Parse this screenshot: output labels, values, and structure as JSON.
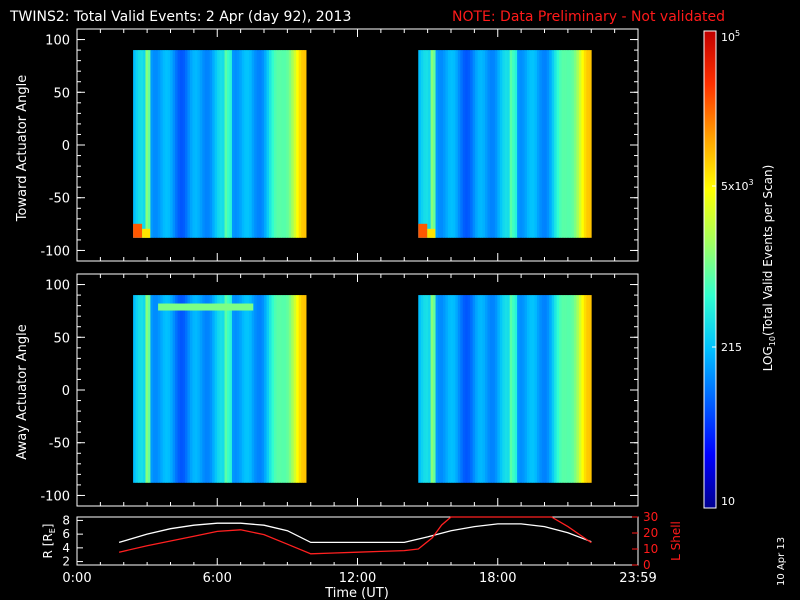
{
  "header": {
    "title": "TWINS2: Total Valid Events:  2 Apr (day  92), 2013",
    "note": "NOTE: Data Preliminary - Not validated"
  },
  "stamp": "10 Apr 13",
  "colors": {
    "background": "#000000",
    "note": "#ff1a1a",
    "r_curve": "#ffffff",
    "lshell_curve": "#ff2020"
  },
  "chart_data": [
    {
      "type": "heatmap",
      "panel": "toward",
      "ylabel": "Toward Actuator Angle",
      "ylim": [
        -110,
        110
      ],
      "yticks": [
        "100",
        "50",
        "0",
        "-50",
        "-100"
      ],
      "xlim_hours": [
        0,
        24
      ],
      "data_intervals_hours": [
        [
          2.4,
          9.8
        ],
        [
          14.6,
          22.0
        ]
      ],
      "angle_range": [
        -88,
        90
      ],
      "colorscale": "log10 events per scan, blue (low) to red (high)"
    },
    {
      "type": "heatmap",
      "panel": "away",
      "ylabel": "Away Actuator Angle",
      "ylim": [
        -110,
        110
      ],
      "yticks": [
        "100",
        "50",
        "0",
        "-50",
        "-100"
      ],
      "xlim_hours": [
        0,
        24
      ],
      "data_intervals_hours": [
        [
          2.4,
          9.8
        ],
        [
          14.6,
          22.0
        ]
      ],
      "angle_range": [
        -88,
        90
      ],
      "colorscale": "log10 events per scan, blue (low) to red (high)"
    },
    {
      "type": "line",
      "panel": "orbit",
      "xlabel": "Time (UT)",
      "xticks": [
        "0:00",
        "6:00",
        "12:00",
        "18:00",
        "23:59"
      ],
      "left_axis": {
        "label": "R [R",
        "label_sub": "E",
        "label_end": "]",
        "ylim": [
          1.5,
          8.5
        ],
        "yticks": [
          "8",
          "6",
          "4",
          "2"
        ]
      },
      "right_axis": {
        "label": "L Shell",
        "ylim": [
          0,
          30
        ],
        "yticks": [
          "30",
          "20",
          "10",
          "0"
        ]
      },
      "series": [
        {
          "axis": "left",
          "x": [
            1.8,
            3,
            4,
            5,
            6,
            7,
            8,
            9,
            10,
            11,
            12,
            13,
            14,
            15,
            16,
            17,
            18,
            19,
            20,
            21,
            22
          ],
          "y": [
            4.8,
            6.0,
            6.8,
            7.3,
            7.6,
            7.6,
            7.3,
            6.5,
            4.8,
            4.8,
            4.8,
            4.8,
            4.8,
            5.6,
            6.5,
            7.1,
            7.5,
            7.5,
            7.1,
            6.2,
            4.9
          ]
        },
        {
          "axis": "right",
          "x": [
            1.8,
            3,
            4,
            5,
            6,
            7,
            8,
            9,
            10,
            11,
            12,
            13,
            14,
            14.6,
            15.2,
            15.6,
            16.0,
            20.3,
            21.0,
            21.5,
            22.0
          ],
          "y": [
            8,
            12,
            15,
            18,
            21,
            22,
            19,
            13,
            7,
            7.5,
            8,
            8.5,
            9,
            10,
            17,
            25,
            31,
            31,
            24,
            19,
            14
          ]
        }
      ]
    }
  ],
  "colorbar": {
    "label_prefix": "LOG",
    "label_sub": "10",
    "label_suffix": "(Total Valid  Events per Scan)",
    "top": {
      "base": "10",
      "exp": "5"
    },
    "mid": {
      "base": "5x10",
      "exp": "3"
    },
    "low": "215",
    "bottom": "10",
    "colors": [
      "#00008f",
      "#0000ff",
      "#0060ff",
      "#00c0ff",
      "#30ffd0",
      "#a0ff60",
      "#ffff00",
      "#ffa000",
      "#ff3000",
      "#c00000"
    ]
  }
}
